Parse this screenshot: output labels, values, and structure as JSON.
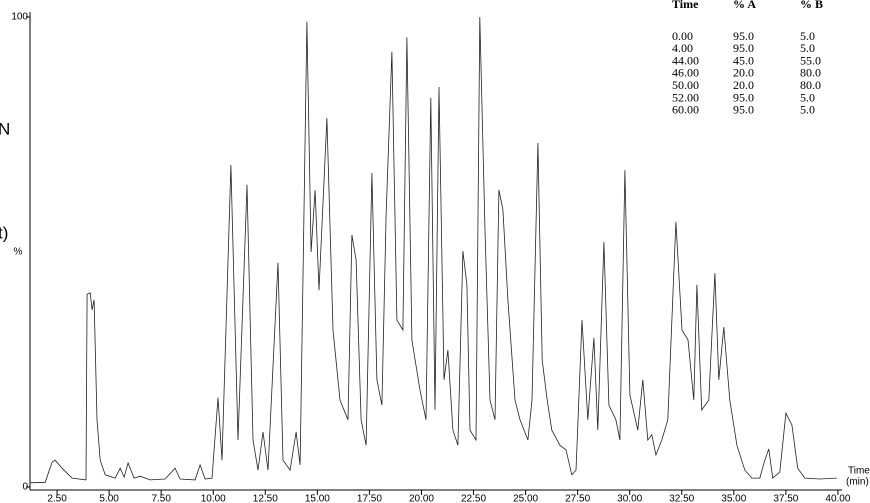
{
  "chart_data": {
    "type": "line",
    "x_label": "Time",
    "x_unit": "(min)",
    "y_label": "%",
    "xlim": [
      1.2,
      40.1
    ],
    "ylim": [
      0,
      100
    ],
    "xticks": [
      {
        "value": 2.5,
        "label": "2.50"
      },
      {
        "value": 5,
        "label": "5.00"
      },
      {
        "value": 7.5,
        "label": "7.50"
      },
      {
        "value": 10,
        "label": "10.00"
      },
      {
        "value": 12.5,
        "label": "12.50"
      },
      {
        "value": 15,
        "label": "15.00"
      },
      {
        "value": 17.5,
        "label": "17.50"
      },
      {
        "value": 20,
        "label": "20.00"
      },
      {
        "value": 22.5,
        "label": "22.50"
      },
      {
        "value": 25,
        "label": "25.00"
      },
      {
        "value": 27.5,
        "label": "27.50"
      },
      {
        "value": 30,
        "label": "30.00"
      },
      {
        "value": 32.5,
        "label": "32.50"
      },
      {
        "value": 35,
        "label": "35.00"
      },
      {
        "value": 37.5,
        "label": "37.50"
      },
      {
        "value": 40,
        "label": "40.00"
      }
    ],
    "yticks": [
      0,
      100
    ],
    "color": "#222222",
    "x": [
      1.2,
      1.93,
      2.26,
      2.4,
      2.74,
      3.22,
      3.89,
      3.94,
      4.09,
      4.18,
      4.28,
      4.42,
      4.57,
      4.81,
      5.29,
      5.53,
      5.72,
      5.91,
      6.2,
      6.49,
      6.97,
      7.69,
      8.17,
      8.41,
      9.13,
      9.37,
      9.61,
      9.94,
      10.23,
      10.42,
      10.85,
      11.19,
      11.62,
      11.91,
      12.15,
      12.39,
      12.63,
      13.11,
      13.35,
      13.69,
      13.98,
      14.17,
      14.5,
      14.7,
      14.89,
      15.08,
      15.46,
      15.75,
      16.09,
      16.47,
      16.66,
      16.86,
      17.1,
      17.34,
      17.62,
      17.86,
      18.1,
      18.3,
      18.58,
      18.82,
      19.11,
      19.3,
      19.54,
      19.93,
      20.22,
      20.45,
      20.65,
      20.84,
      21.08,
      21.27,
      21.51,
      21.75,
      21.99,
      22.18,
      22.33,
      22.62,
      22.8,
      23.05,
      23.29,
      23.53,
      23.72,
      23.91,
      24.15,
      24.49,
      24.73,
      25.11,
      25.31,
      25.59,
      25.8,
      26.04,
      26.26,
      26.65,
      26.94,
      27.22,
      27.42,
      27.71,
      27.99,
      28.28,
      28.47,
      28.76,
      29.0,
      29.34,
      29.53,
      29.77,
      30.01,
      30.39,
      30.63,
      30.87,
      31.06,
      31.26,
      31.54,
      31.83,
      32.22,
      32.51,
      32.8,
      33.08,
      33.23,
      33.46,
      33.8,
      34.09,
      34.28,
      34.52,
      34.81,
      35.15,
      35.53,
      35.87,
      36.25,
      36.49,
      36.68,
      36.87,
      37.21,
      37.5,
      37.79,
      38.07,
      38.41,
      39.13,
      39.94
    ],
    "values": [
      0.9,
      1,
      5.3,
      5.7,
      4,
      1.9,
      1.5,
      41,
      41.3,
      37.7,
      39.8,
      14.3,
      5.7,
      2.6,
      1.9,
      4,
      2.1,
      5.1,
      1.9,
      2.3,
      1.5,
      1.7,
      4,
      1.7,
      1.5,
      4.7,
      1.7,
      1.9,
      19,
      5.7,
      68.5,
      10,
      64.3,
      10,
      3.6,
      11.7,
      3.6,
      47.7,
      5.7,
      3.6,
      11.7,
      4.7,
      99,
      50,
      63.2,
      41.9,
      78.5,
      33.4,
      18.5,
      14.3,
      53.6,
      48.3,
      14.3,
      8.9,
      66.8,
      22.8,
      17.4,
      57.9,
      92.6,
      35.5,
      33.4,
      95.7,
      31.3,
      20.6,
      14.3,
      82.8,
      16.4,
      85.1,
      22.8,
      29.1,
      12.1,
      8.9,
      50.2,
      43,
      12.1,
      10,
      100,
      54.7,
      18.5,
      14.3,
      63.2,
      59,
      39.8,
      18.5,
      14.3,
      10,
      18.5,
      73.2,
      27,
      18.5,
      12.1,
      8.9,
      7.9,
      2.6,
      3.6,
      35.5,
      14.3,
      31.7,
      12.1,
      52.1,
      17.4,
      14.3,
      10,
      67.4,
      19.6,
      12.1,
      22.8,
      10,
      11.1,
      6.8,
      10,
      14.3,
      56.4,
      33.4,
      31.3,
      18.5,
      43,
      16.4,
      18.5,
      45.5,
      22.8,
      34,
      18.5,
      8.9,
      3.6,
      1.9,
      1.9,
      5.7,
      8.1,
      1.9,
      3.2,
      15.7,
      13.2,
      4,
      1.9,
      1.7,
      1.9
    ]
  },
  "gradient_table": {
    "columns": [
      "Time",
      "% A",
      "% B"
    ],
    "rows": [
      [
        "0.00",
        "95.0",
        "5.0"
      ],
      [
        "4.00",
        "95.0",
        "5.0"
      ],
      [
        "44.00",
        "45.0",
        "55.0"
      ],
      [
        "46.00",
        "20.0",
        "80.0"
      ],
      [
        "50.00",
        "20.0",
        "80.0"
      ],
      [
        "52.00",
        "95.0",
        "5.0"
      ],
      [
        "60.00",
        "95.0",
        "5.0"
      ]
    ]
  },
  "side_fragments": [
    "N",
    "t)"
  ]
}
